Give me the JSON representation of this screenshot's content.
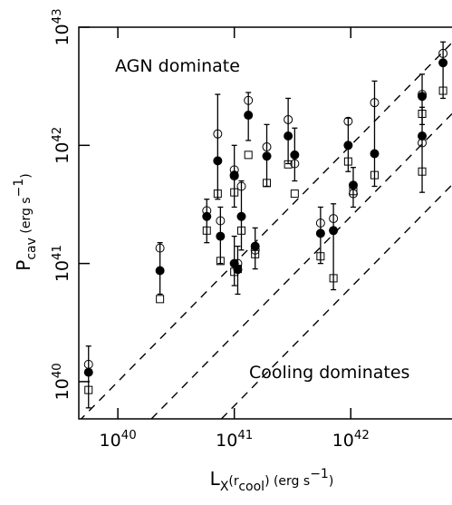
{
  "chart_data": {
    "type": "scatter",
    "x_label": "L_{X}(r_{cool}) (erg s^{−1})",
    "y_label": "P_{cav} (erg s^{−1})",
    "xlog": true,
    "ylog": true,
    "xlim": [
      4.62e+39,
      7.4e+42
    ],
    "ylim": [
      4.84e+39,
      1e+43
    ],
    "xticks": [
      {
        "value": 1e+40,
        "label": "10^{40}"
      },
      {
        "value": 1e+41,
        "label": "10^{41}"
      },
      {
        "value": 1e+42,
        "label": "10^{42}"
      }
    ],
    "yticks": [
      {
        "value": 1e+40,
        "label": "10^{40}"
      },
      {
        "value": 1e+41,
        "label": "10^{41}"
      },
      {
        "value": 1e+42,
        "label": "10^{42}"
      },
      {
        "value": 1e+43,
        "label": "10^{43}"
      }
    ],
    "annotations": [
      "AGN dominate",
      "Cooling dominates"
    ],
    "x": [
      5.6e+39,
      2.3e+40,
      5.8e+40,
      7.2e+40,
      7.6e+40,
      1e+41,
      1e+41,
      1.07e+41,
      1.15e+41,
      1.32e+41,
      1.51e+41,
      1.9e+41,
      2.9e+41,
      3.3e+41,
      5.5e+41,
      7.1e+41,
      9.5e+41,
      1.05e+42,
      1.6e+42,
      4.1e+42,
      4.1e+42,
      6.2e+42
    ],
    "series": [
      {
        "marker": "filled-circle",
        "color": "#000000",
        "values": [
          1.2e+40,
          8.7e+40,
          2.5e+41,
          7.4e+41,
          1.7e+41,
          1e+41,
          5.6e+41,
          8.9e+40,
          2.5e+41,
          1.8e+42,
          1.4e+41,
          8.1e+41,
          1.2e+42,
          8.3e+41,
          1.8e+41,
          1.9e+41,
          1e+42,
          4.6e+41,
          8.5e+41,
          2.6e+42,
          1.2e+42,
          5e+42
        ],
        "low": [
          6e+39,
          5.5e+40,
          1.5e+41,
          3.5e+41,
          1e+41,
          6.5e+40,
          3e+41,
          5.5e+40,
          1.3e+41,
          1.1e+42,
          9e+40,
          4.5e+41,
          7e+41,
          5e+41,
          1e+41,
          6e+40,
          6e+41,
          3e+41,
          4.5e+41,
          1.5e+42,
          4e+41,
          2.5e+42
        ],
        "high": [
          2e+40,
          1.5e+41,
          3.5e+41,
          2.7e+42,
          3e+41,
          1.7e+41,
          1e+42,
          1.4e+41,
          5e+41,
          2.8e+42,
          2e+41,
          1.5e+42,
          2.5e+42,
          1.4e+42,
          3e+41,
          3.2e+41,
          1.7e+42,
          6.5e+41,
          3.5e+42,
          4e+42,
          2.1e+42,
          7.5e+42
        ]
      },
      {
        "marker": "open-circle",
        "color": "#000000",
        "values": [
          1.4e+40,
          1.35e+41,
          2.8e+41,
          1.25e+42,
          2.3e+41,
          6.2e+41,
          5.5e+41,
          1e+41,
          4.5e+41,
          2.4e+42,
          1.3e+41,
          9.7e+41,
          1.65e+42,
          7e+41,
          2.2e+41,
          2.4e+41,
          1.6e+42,
          3.9e+41,
          2.3e+42,
          2.7e+42,
          1.05e+42,
          6e+42
        ]
      },
      {
        "marker": "open-square",
        "color": "#000000",
        "values": [
          8.5e+39,
          5e+40,
          1.9e+41,
          3.9e+41,
          1.05e+41,
          8.5e+40,
          4e+41,
          9e+40,
          1.9e+41,
          8.3e+41,
          1.2e+41,
          4.8e+41,
          6.9e+41,
          3.9e+41,
          1.15e+41,
          7.5e+40,
          7.3e+41,
          4.1e+41,
          5.6e+41,
          1.85e+42,
          6e+41,
          2.9e+42
        ]
      }
    ],
    "lines": [
      {
        "x": [
          4.62e+39,
          7.4e+42
        ],
        "values": [
          4.62e+39,
          7.4e+42
        ]
      },
      {
        "x": [
          1.94e+40,
          7.4e+42
        ],
        "values": [
          4.84e+39,
          1.85e+42
        ]
      },
      {
        "x": [
          7.74e+40,
          7.4e+42
        ],
        "values": [
          4.84e+39,
          4.63e+41
        ]
      }
    ]
  }
}
